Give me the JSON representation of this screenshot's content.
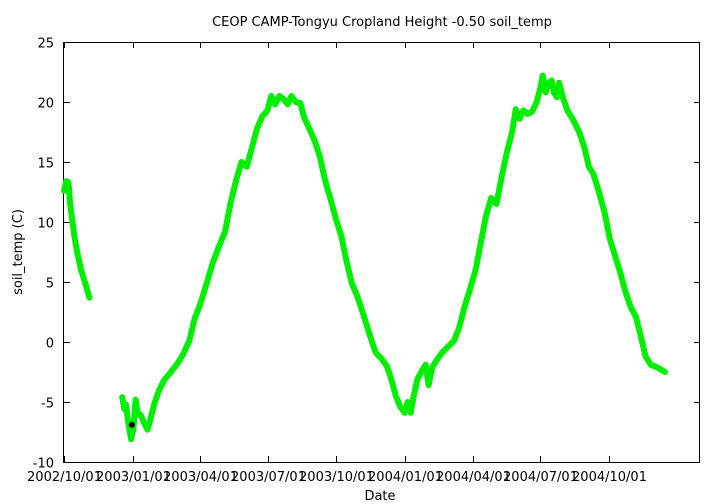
{
  "chart_data": {
    "type": "line",
    "title": "CEOP CAMP-Tongyu Cropland Height -0.50 soil_temp",
    "xlabel": "Date",
    "ylabel": "soil_temp (C)",
    "ylim": [
      -10,
      25
    ],
    "xlim": [
      "2002-10-01",
      "2005-01-31"
    ],
    "grid": false,
    "yticks": [
      {
        "value": 25,
        "label": "25"
      },
      {
        "value": 20,
        "label": "20"
      },
      {
        "value": 15,
        "label": "15"
      },
      {
        "value": 10,
        "label": "10"
      },
      {
        "value": 5,
        "label": "5"
      },
      {
        "value": 0,
        "label": "0"
      },
      {
        "value": -5,
        "label": "-5"
      },
      {
        "value": -10,
        "label": "-10"
      }
    ],
    "xticks": [
      {
        "value": "2002-10-01",
        "label": "2002/10/01"
      },
      {
        "value": "2003-01-01",
        "label": "2003/01/01"
      },
      {
        "value": "2003-04-01",
        "label": "2003/04/01"
      },
      {
        "value": "2003-07-01",
        "label": "2003/07/01"
      },
      {
        "value": "2003-10-01",
        "label": "2003/10/01"
      },
      {
        "value": "2004-01-01",
        "label": "2004/01/01"
      },
      {
        "value": "2004-04-01",
        "label": "2004/04/01"
      },
      {
        "value": "2004-07-01",
        "label": "2004/07/01"
      },
      {
        "value": "2004-10-01",
        "label": "2004/10/01"
      }
    ],
    "series": [
      {
        "name": "soil_temp",
        "color": "#00ee00",
        "segments": [
          [
            [
              "2002-10-01",
              12.6
            ],
            [
              "2002-10-04",
              13.4
            ],
            [
              "2002-10-07",
              13.3
            ],
            [
              "2002-10-09",
              11.6
            ],
            [
              "2002-10-12",
              10.2
            ],
            [
              "2002-10-15",
              8.8
            ],
            [
              "2002-10-19",
              7.4
            ],
            [
              "2002-10-24",
              6.0
            ],
            [
              "2002-10-30",
              4.8
            ],
            [
              "2002-11-04",
              3.7
            ]
          ],
          [
            [
              "2002-12-18",
              -4.6
            ],
            [
              "2002-12-21",
              -5.6
            ],
            [
              "2002-12-23",
              -5.2
            ],
            [
              "2002-12-26",
              -6.6
            ],
            [
              "2002-12-30",
              -8.1
            ],
            [
              "2003-01-02",
              -7.3
            ],
            [
              "2003-01-05",
              -4.8
            ],
            [
              "2003-01-08",
              -5.9
            ],
            [
              "2003-01-12",
              -6.1
            ],
            [
              "2003-01-16",
              -6.7
            ],
            [
              "2003-01-21",
              -7.3
            ],
            [
              "2003-01-25",
              -6.4
            ],
            [
              "2003-01-30",
              -5.2
            ],
            [
              "2003-02-05",
              -4.1
            ],
            [
              "2003-02-12",
              -3.2
            ],
            [
              "2003-02-20",
              -2.6
            ],
            [
              "2003-03-01",
              -1.9
            ],
            [
              "2003-03-10",
              -1.0
            ],
            [
              "2003-03-18",
              0.1
            ],
            [
              "2003-03-25",
              1.9
            ],
            [
              "2003-04-02",
              3.2
            ],
            [
              "2003-04-10",
              4.8
            ],
            [
              "2003-04-18",
              6.5
            ],
            [
              "2003-04-27",
              8.0
            ],
            [
              "2003-05-05",
              9.2
            ],
            [
              "2003-05-12",
              11.5
            ],
            [
              "2003-05-20",
              13.5
            ],
            [
              "2003-05-27",
              15.0
            ],
            [
              "2003-06-03",
              14.6
            ],
            [
              "2003-06-10",
              16.2
            ],
            [
              "2003-06-17",
              17.8
            ],
            [
              "2003-06-24",
              18.8
            ],
            [
              "2003-07-01",
              19.3
            ],
            [
              "2003-07-06",
              20.5
            ],
            [
              "2003-07-11",
              19.8
            ],
            [
              "2003-07-17",
              20.5
            ],
            [
              "2003-07-23",
              20.2
            ],
            [
              "2003-07-28",
              19.8
            ],
            [
              "2003-08-02",
              20.5
            ],
            [
              "2003-08-08",
              20.0
            ],
            [
              "2003-08-14",
              19.9
            ],
            [
              "2003-08-19",
              18.7
            ],
            [
              "2003-08-26",
              17.8
            ],
            [
              "2003-09-02",
              16.8
            ],
            [
              "2003-09-09",
              15.5
            ],
            [
              "2003-09-16",
              13.5
            ],
            [
              "2003-09-24",
              11.8
            ],
            [
              "2003-10-01",
              10.2
            ],
            [
              "2003-10-08",
              8.8
            ],
            [
              "2003-10-15",
              6.7
            ],
            [
              "2003-10-22",
              4.9
            ],
            [
              "2003-10-30",
              3.7
            ],
            [
              "2003-11-07",
              2.2
            ],
            [
              "2003-11-15",
              0.6
            ],
            [
              "2003-11-23",
              -0.9
            ],
            [
              "2003-12-01",
              -1.4
            ],
            [
              "2003-12-08",
              -2.0
            ],
            [
              "2003-12-14",
              -3.1
            ],
            [
              "2003-12-20",
              -4.5
            ],
            [
              "2003-12-26",
              -5.4
            ],
            [
              "2004-01-01",
              -5.9
            ],
            [
              "2004-01-05",
              -5.0
            ],
            [
              "2004-01-09",
              -5.9
            ],
            [
              "2004-01-13",
              -4.5
            ],
            [
              "2004-01-18",
              -3.1
            ],
            [
              "2004-01-24",
              -2.4
            ],
            [
              "2004-01-29",
              -1.9
            ],
            [
              "2004-02-02",
              -3.6
            ],
            [
              "2004-02-07",
              -2.1
            ],
            [
              "2004-02-13",
              -1.5
            ],
            [
              "2004-02-20",
              -0.9
            ],
            [
              "2004-02-28",
              -0.4
            ],
            [
              "2004-03-07",
              0.1
            ],
            [
              "2004-03-14",
              1.2
            ],
            [
              "2004-03-21",
              2.9
            ],
            [
              "2004-03-29",
              4.5
            ],
            [
              "2004-04-05",
              6.0
            ],
            [
              "2004-04-12",
              8.3
            ],
            [
              "2004-04-19",
              10.5
            ],
            [
              "2004-04-26",
              12.0
            ],
            [
              "2004-05-03",
              11.5
            ],
            [
              "2004-05-10",
              13.8
            ],
            [
              "2004-05-17",
              15.8
            ],
            [
              "2004-05-24",
              17.5
            ],
            [
              "2004-05-29",
              19.4
            ],
            [
              "2004-06-03",
              18.6
            ],
            [
              "2004-06-08",
              19.3
            ],
            [
              "2004-06-14",
              19.0
            ],
            [
              "2004-06-20",
              19.2
            ],
            [
              "2004-06-26",
              20.0
            ],
            [
              "2004-07-01",
              21.2
            ],
            [
              "2004-07-04",
              22.2
            ],
            [
              "2004-07-08",
              20.8
            ],
            [
              "2004-07-12",
              21.6
            ],
            [
              "2004-07-16",
              21.8
            ],
            [
              "2004-07-19",
              20.8
            ],
            [
              "2004-07-23",
              20.4
            ],
            [
              "2004-07-26",
              21.6
            ],
            [
              "2004-07-31",
              20.4
            ],
            [
              "2004-08-06",
              19.3
            ],
            [
              "2004-08-14",
              18.5
            ],
            [
              "2004-08-22",
              17.5
            ],
            [
              "2004-08-29",
              16.2
            ],
            [
              "2004-09-04",
              14.6
            ],
            [
              "2004-09-10",
              14.0
            ],
            [
              "2004-09-17",
              12.6
            ],
            [
              "2004-09-25",
              10.8
            ],
            [
              "2004-10-02",
              8.6
            ],
            [
              "2004-10-09",
              7.2
            ],
            [
              "2004-10-16",
              5.8
            ],
            [
              "2004-10-23",
              4.2
            ],
            [
              "2004-10-30",
              2.9
            ],
            [
              "2004-11-06",
              2.1
            ],
            [
              "2004-11-12",
              0.6
            ],
            [
              "2004-11-19",
              -1.2
            ],
            [
              "2004-11-26",
              -1.9
            ],
            [
              "2004-12-04",
              -2.1
            ],
            [
              "2004-12-10",
              -2.3
            ],
            [
              "2004-12-15",
              -2.5
            ]
          ]
        ]
      }
    ],
    "marker": {
      "name": "highlighted-point",
      "x": "2002-12-31",
      "y": -6.9,
      "color": "#000000"
    }
  }
}
